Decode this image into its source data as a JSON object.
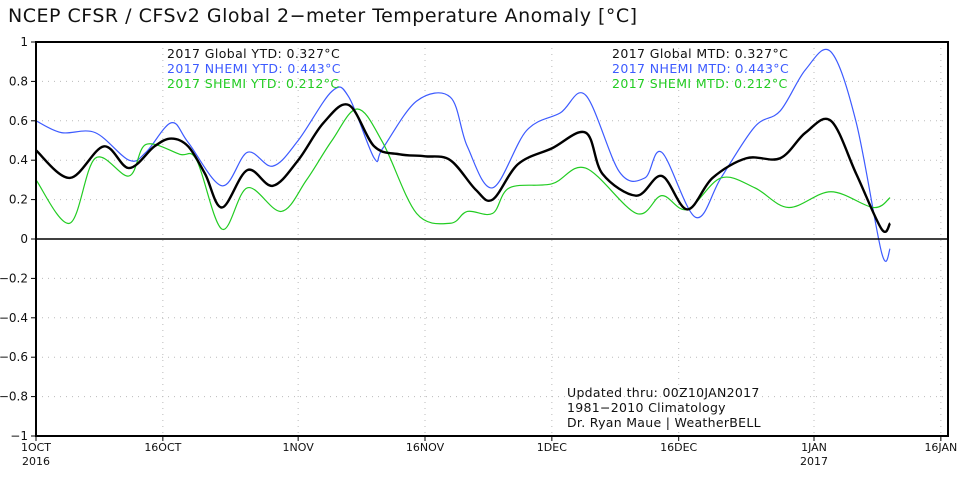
{
  "chart_data": {
    "type": "line",
    "title": "NCEP CFSR / CFSv2 Global 2−meter Temperature Anomaly [°C]",
    "xlim": [
      "2016-10-01",
      "2017-01-17"
    ],
    "ylim": [
      -1,
      1
    ],
    "y_ticks": [
      "1",
      "0.8",
      "0.6",
      "0.4",
      "0.2",
      "0",
      "−0.2",
      "−0.4",
      "−0.6",
      "−0.8",
      "−1"
    ],
    "y_tick_values": [
      1,
      0.8,
      0.6,
      0.4,
      0.2,
      0,
      -0.2,
      -0.4,
      -0.6,
      -0.8,
      -1
    ],
    "x_ticks": [
      {
        "date": "2016-10-01",
        "label": "1OCT",
        "sub": "2016"
      },
      {
        "date": "2016-10-16",
        "label": "16OCT",
        "sub": ""
      },
      {
        "date": "2016-11-01",
        "label": "1NOV",
        "sub": ""
      },
      {
        "date": "2016-11-16",
        "label": "16NOV",
        "sub": ""
      },
      {
        "date": "2016-12-01",
        "label": "1DEC",
        "sub": ""
      },
      {
        "date": "2016-12-16",
        "label": "16DEC",
        "sub": ""
      },
      {
        "date": "2017-01-01",
        "label": "1JAN",
        "sub": "2017"
      },
      {
        "date": "2017-01-16",
        "label": "16JAN",
        "sub": ""
      }
    ],
    "grid": true,
    "zero_line": true,
    "series": [
      {
        "key": "nhemi",
        "color": "#3d5bff",
        "points": [
          [
            "2016-10-01",
            0.6
          ],
          [
            "2016-10-04",
            0.54
          ],
          [
            "2016-10-08",
            0.54
          ],
          [
            "2016-10-12",
            0.4
          ],
          [
            "2016-10-14",
            0.44
          ],
          [
            "2016-10-17",
            0.59
          ],
          [
            "2016-10-19",
            0.49
          ],
          [
            "2016-10-23",
            0.27
          ],
          [
            "2016-10-26",
            0.44
          ],
          [
            "2016-10-29",
            0.37
          ],
          [
            "2016-11-01",
            0.5
          ],
          [
            "2016-11-05",
            0.75
          ],
          [
            "2016-11-07",
            0.72
          ],
          [
            "2016-11-10",
            0.41
          ],
          [
            "2016-11-11",
            0.46
          ],
          [
            "2016-11-15",
            0.7
          ],
          [
            "2016-11-19",
            0.72
          ],
          [
            "2016-11-21",
            0.47
          ],
          [
            "2016-11-24",
            0.26
          ],
          [
            "2016-11-28",
            0.55
          ],
          [
            "2016-12-02",
            0.64
          ],
          [
            "2016-12-05",
            0.73
          ],
          [
            "2016-12-09",
            0.34
          ],
          [
            "2016-12-12",
            0.31
          ],
          [
            "2016-12-14",
            0.44
          ],
          [
            "2016-12-18",
            0.11
          ],
          [
            "2016-12-21",
            0.31
          ],
          [
            "2016-12-25",
            0.57
          ],
          [
            "2016-12-28",
            0.65
          ],
          [
            "2016-12-31",
            0.86
          ],
          [
            "2017-01-03",
            0.95
          ],
          [
            "2017-01-06",
            0.59
          ],
          [
            "2017-01-09",
            -0.07
          ],
          [
            "2017-01-10",
            -0.05
          ]
        ]
      },
      {
        "key": "shemi",
        "color": "#22cc22",
        "points": [
          [
            "2016-10-01",
            0.3
          ],
          [
            "2016-10-05",
            0.08
          ],
          [
            "2016-10-08",
            0.41
          ],
          [
            "2016-10-12",
            0.32
          ],
          [
            "2016-10-14",
            0.48
          ],
          [
            "2016-10-18",
            0.43
          ],
          [
            "2016-10-20",
            0.4
          ],
          [
            "2016-10-23",
            0.05
          ],
          [
            "2016-10-26",
            0.26
          ],
          [
            "2016-10-30",
            0.14
          ],
          [
            "2016-11-02",
            0.3
          ],
          [
            "2016-11-05",
            0.5
          ],
          [
            "2016-11-08",
            0.66
          ],
          [
            "2016-11-11",
            0.49
          ],
          [
            "2016-11-15",
            0.13
          ],
          [
            "2016-11-19",
            0.08
          ],
          [
            "2016-11-21",
            0.14
          ],
          [
            "2016-11-24",
            0.13
          ],
          [
            "2016-11-26",
            0.26
          ],
          [
            "2016-12-01",
            0.28
          ],
          [
            "2016-12-05",
            0.36
          ],
          [
            "2016-12-11",
            0.13
          ],
          [
            "2016-12-14",
            0.22
          ],
          [
            "2016-12-17",
            0.15
          ],
          [
            "2016-12-21",
            0.31
          ],
          [
            "2016-12-25",
            0.26
          ],
          [
            "2016-12-29",
            0.16
          ],
          [
            "2017-01-03",
            0.24
          ],
          [
            "2017-01-08",
            0.16
          ],
          [
            "2017-01-10",
            0.21
          ]
        ]
      },
      {
        "key": "global",
        "color": "#000000",
        "points": [
          [
            "2016-10-01",
            0.45
          ],
          [
            "2016-10-05",
            0.31
          ],
          [
            "2016-10-09",
            0.47
          ],
          [
            "2016-10-12",
            0.36
          ],
          [
            "2016-10-15",
            0.47
          ],
          [
            "2016-10-17",
            0.51
          ],
          [
            "2016-10-19",
            0.47
          ],
          [
            "2016-10-21",
            0.33
          ],
          [
            "2016-10-23",
            0.16
          ],
          [
            "2016-10-26",
            0.35
          ],
          [
            "2016-10-29",
            0.27
          ],
          [
            "2016-11-01",
            0.4
          ],
          [
            "2016-11-04",
            0.59
          ],
          [
            "2016-11-07",
            0.68
          ],
          [
            "2016-11-10",
            0.47
          ],
          [
            "2016-11-13",
            0.43
          ],
          [
            "2016-11-16",
            0.42
          ],
          [
            "2016-11-19",
            0.4
          ],
          [
            "2016-11-22",
            0.25
          ],
          [
            "2016-11-24",
            0.2
          ],
          [
            "2016-11-27",
            0.38
          ],
          [
            "2016-12-01",
            0.46
          ],
          [
            "2016-12-05",
            0.54
          ],
          [
            "2016-12-07",
            0.33
          ],
          [
            "2016-12-11",
            0.22
          ],
          [
            "2016-12-14",
            0.32
          ],
          [
            "2016-12-17",
            0.15
          ],
          [
            "2016-12-20",
            0.31
          ],
          [
            "2016-12-24",
            0.41
          ],
          [
            "2016-12-28",
            0.41
          ],
          [
            "2016-12-31",
            0.54
          ],
          [
            "2017-01-03",
            0.6
          ],
          [
            "2017-01-06",
            0.33
          ],
          [
            "2017-01-09",
            0.05
          ],
          [
            "2017-01-10",
            0.08
          ]
        ]
      }
    ],
    "legend_left": [
      {
        "text": "2017 Global YTD: 0.327°C",
        "color": "#111111"
      },
      {
        "text": "2017 NHEMI YTD: 0.443°C",
        "color": "#3d5bff"
      },
      {
        "text": "2017 SHEMI YTD: 0.212°C",
        "color": "#22cc22"
      }
    ],
    "legend_right": [
      {
        "text": "2017 Global MTD: 0.327°C",
        "color": "#111111"
      },
      {
        "text": "2017 NHEMI MTD: 0.443°C",
        "color": "#3d5bff"
      },
      {
        "text": "2017 SHEMI MTD: 0.212°C",
        "color": "#22cc22"
      }
    ],
    "annotations": [
      "Updated thru: 00Z10JAN2017",
      "1981−2010 Climatology",
      "Dr. Ryan Maue | WeatherBELL"
    ]
  }
}
